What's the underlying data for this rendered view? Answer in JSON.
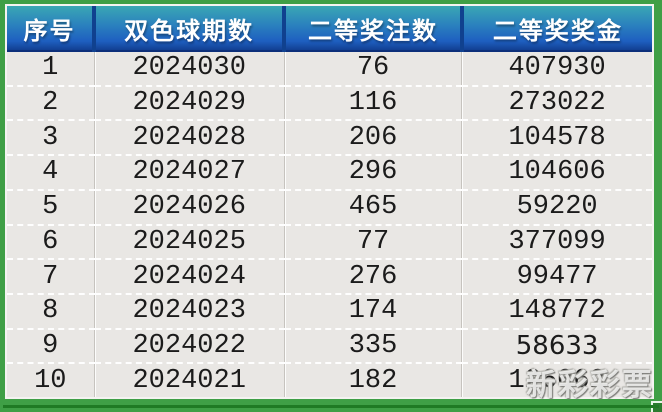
{
  "table": {
    "columns": [
      {
        "label": "序号"
      },
      {
        "label": "双色球期数"
      },
      {
        "label": "二等奖注数"
      },
      {
        "label": "二等奖奖金"
      }
    ],
    "rows": [
      {
        "no": "1",
        "period": "2024030",
        "bets": "76",
        "prize": "407930"
      },
      {
        "no": "2",
        "period": "2024029",
        "bets": "116",
        "prize": "273022"
      },
      {
        "no": "3",
        "period": "2024028",
        "bets": "206",
        "prize": "104578"
      },
      {
        "no": "4",
        "period": "2024027",
        "bets": "296",
        "prize": "104606"
      },
      {
        "no": "5",
        "period": "2024026",
        "bets": "465",
        "prize": "59220"
      },
      {
        "no": "6",
        "period": "2024025",
        "bets": "77",
        "prize": "377099"
      },
      {
        "no": "7",
        "period": "2024024",
        "bets": "276",
        "prize": "99477"
      },
      {
        "no": "8",
        "period": "2024023",
        "bets": "174",
        "prize": "148772"
      },
      {
        "no": "9",
        "period": "2024022",
        "bets": "335",
        "prize": "58633",
        "alt_font": true
      },
      {
        "no": "10",
        "period": "2024021",
        "bets": "182",
        "prize": "126062"
      }
    ]
  },
  "watermark": {
    "text": "新彩彩票"
  },
  "colors": {
    "frame_green": "#3f9f46",
    "frame_green_dark": "#1f7a24",
    "header_gradient_top": "#3aa7b4",
    "header_gradient_bottom": "#123f92",
    "header_text": "#ffffff",
    "cell_background": "#e9e7e4",
    "cell_text": "#1b1b1b"
  }
}
